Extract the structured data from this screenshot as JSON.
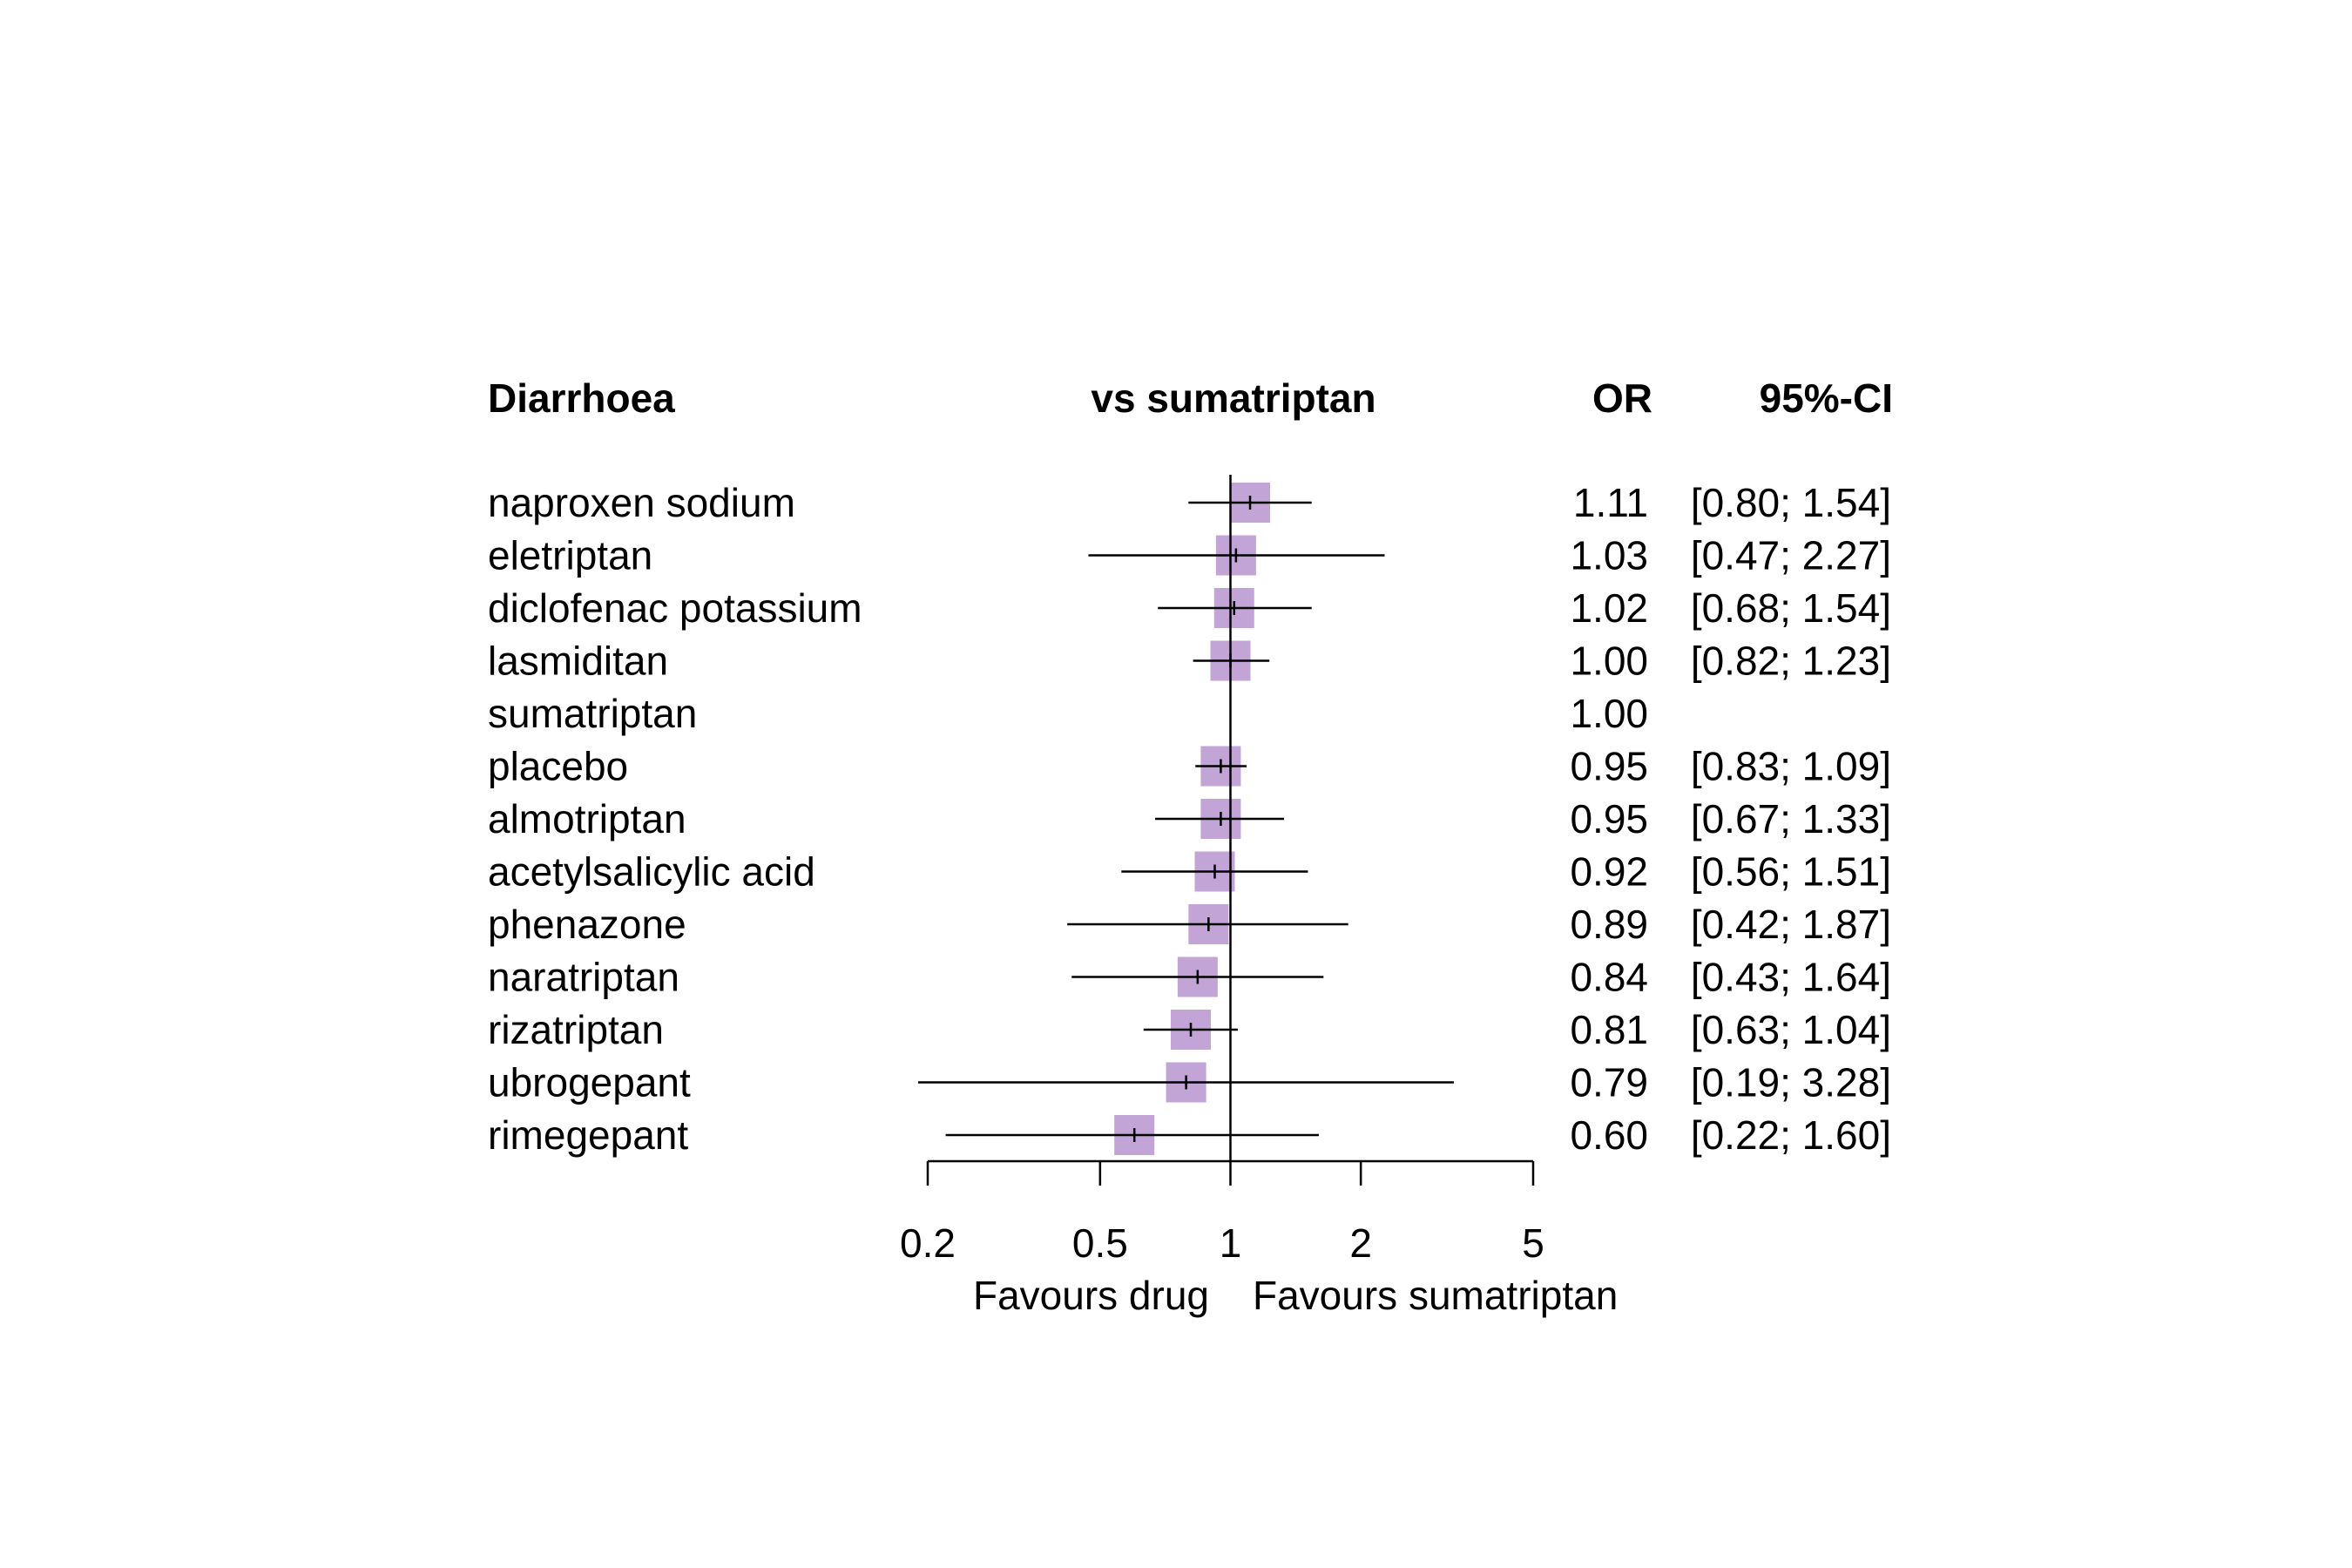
{
  "chart_data": {
    "type": "forest",
    "title": "Diarrhoea",
    "comparison_label": "vs sumatriptan",
    "columns": {
      "estimate": "OR",
      "ci": "95%-CI"
    },
    "x_scale": "log",
    "x_ticks": [
      "0.2",
      "0.5",
      "1",
      "2",
      "5"
    ],
    "x_range": [
      0.2,
      5
    ],
    "reference_value": 1,
    "favours_left": "Favours drug",
    "favours_right": "Favours sumatriptan",
    "marker_color": "#c3a4d6",
    "rows": [
      {
        "label": "naproxen sodium",
        "or": 1.11,
        "lower": 0.8,
        "upper": 1.54,
        "or_text": "1.11",
        "ci_text": "[0.80; 1.54]"
      },
      {
        "label": "eletriptan",
        "or": 1.03,
        "lower": 0.47,
        "upper": 2.27,
        "or_text": "1.03",
        "ci_text": "[0.47; 2.27]"
      },
      {
        "label": "diclofenac potassium",
        "or": 1.02,
        "lower": 0.68,
        "upper": 1.54,
        "or_text": "1.02",
        "ci_text": "[0.68; 1.54]"
      },
      {
        "label": "lasmiditan",
        "or": 1.0,
        "lower": 0.82,
        "upper": 1.23,
        "or_text": "1.00",
        "ci_text": "[0.82; 1.23]"
      },
      {
        "label": "sumatriptan",
        "or": 1.0,
        "lower": null,
        "upper": null,
        "or_text": "1.00",
        "ci_text": ""
      },
      {
        "label": "placebo",
        "or": 0.95,
        "lower": 0.83,
        "upper": 1.09,
        "or_text": "0.95",
        "ci_text": "[0.83; 1.09]"
      },
      {
        "label": "almotriptan",
        "or": 0.95,
        "lower": 0.67,
        "upper": 1.33,
        "or_text": "0.95",
        "ci_text": "[0.67; 1.33]"
      },
      {
        "label": "acetylsalicylic acid",
        "or": 0.92,
        "lower": 0.56,
        "upper": 1.51,
        "or_text": "0.92",
        "ci_text": "[0.56; 1.51]"
      },
      {
        "label": "phenazone",
        "or": 0.89,
        "lower": 0.42,
        "upper": 1.87,
        "or_text": "0.89",
        "ci_text": "[0.42; 1.87]"
      },
      {
        "label": "naratriptan",
        "or": 0.84,
        "lower": 0.43,
        "upper": 1.64,
        "or_text": "0.84",
        "ci_text": "[0.43; 1.64]"
      },
      {
        "label": "rizatriptan",
        "or": 0.81,
        "lower": 0.63,
        "upper": 1.04,
        "or_text": "0.81",
        "ci_text": "[0.63; 1.04]"
      },
      {
        "label": "ubrogepant",
        "or": 0.79,
        "lower": 0.19,
        "upper": 3.28,
        "or_text": "0.79",
        "ci_text": "[0.19; 3.28]"
      },
      {
        "label": "rimegepant",
        "or": 0.6,
        "lower": 0.22,
        "upper": 1.6,
        "or_text": "0.60",
        "ci_text": "[0.22; 1.60]"
      }
    ]
  }
}
